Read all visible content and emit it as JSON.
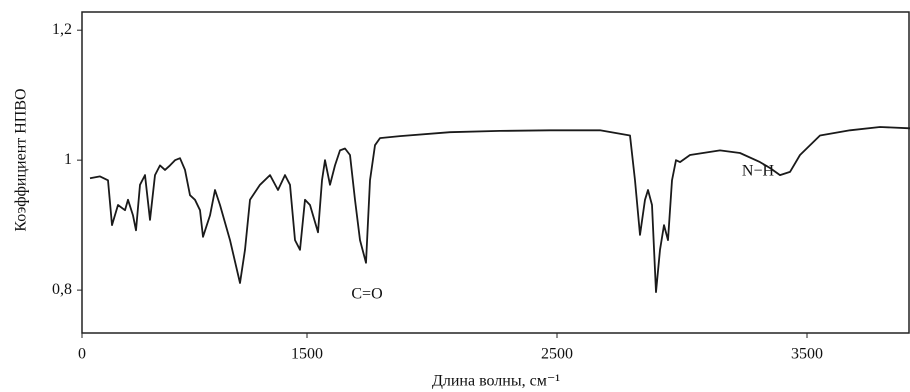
{
  "chart_data": {
    "type": "line",
    "xlabel": "Длина волны, см⁻¹",
    "ylabel": "Коэффициент НПВО",
    "annotations": [
      "C=O",
      "N−H"
    ],
    "xlim": [
      600,
      3912
    ],
    "ylim": [
      0.734,
      1.228
    ],
    "xticks": [
      {
        "value": 600,
        "label": "0"
      },
      1500,
      2500,
      3500
    ],
    "yticks": [
      {
        "value": 1.2,
        "label": "1,2"
      },
      1,
      {
        "value": 0.8,
        "label": "0,8"
      }
    ],
    "grid": false,
    "series": [
      {
        "color": "#1a1a1a",
        "x": [
          632,
          672,
          704,
          720,
          744,
          772,
          784,
          804,
          816,
          832,
          852,
          872,
          892,
          912,
          932,
          952,
          972,
          992,
          1012,
          1032,
          1052,
          1072,
          1084,
          1112,
          1132,
          1152,
          1192,
          1232,
          1252,
          1272,
          1312,
          1352,
          1384,
          1412,
          1432,
          1452,
          1472,
          1492,
          1512,
          1544,
          1560,
          1572,
          1592,
          1612,
          1632,
          1652,
          1672,
          1692,
          1712,
          1736,
          1752,
          1772,
          1792,
          1872,
          2072,
          2272,
          2472,
          2672,
          2792,
          2812,
          2832,
          2852,
          2864,
          2880,
          2896,
          2912,
          2928,
          2944,
          2960,
          2976,
          2992,
          3032,
          3152,
          3232,
          3312,
          3352,
          3392,
          3432,
          3472,
          3552,
          3672,
          3792,
          3912
        ],
        "values": [
          0.972,
          0.975,
          0.969,
          0.9,
          0.931,
          0.923,
          0.939,
          0.915,
          0.892,
          0.962,
          0.977,
          0.908,
          0.977,
          0.992,
          0.985,
          0.992,
          1.0,
          1.003,
          0.985,
          0.946,
          0.939,
          0.923,
          0.882,
          0.915,
          0.954,
          0.931,
          0.877,
          0.811,
          0.862,
          0.939,
          0.962,
          0.977,
          0.954,
          0.977,
          0.962,
          0.877,
          0.862,
          0.939,
          0.931,
          0.889,
          0.969,
          1.0,
          0.962,
          0.992,
          1.015,
          1.018,
          1.008,
          0.939,
          0.877,
          0.842,
          0.969,
          1.023,
          1.034,
          1.037,
          1.043,
          1.045,
          1.046,
          1.046,
          1.038,
          0.969,
          0.885,
          0.939,
          0.954,
          0.931,
          0.797,
          0.862,
          0.9,
          0.877,
          0.969,
          1.0,
          0.997,
          1.008,
          1.015,
          1.011,
          0.997,
          0.988,
          0.977,
          0.982,
          1.008,
          1.038,
          1.046,
          1.051,
          1.049
        ]
      }
    ]
  }
}
